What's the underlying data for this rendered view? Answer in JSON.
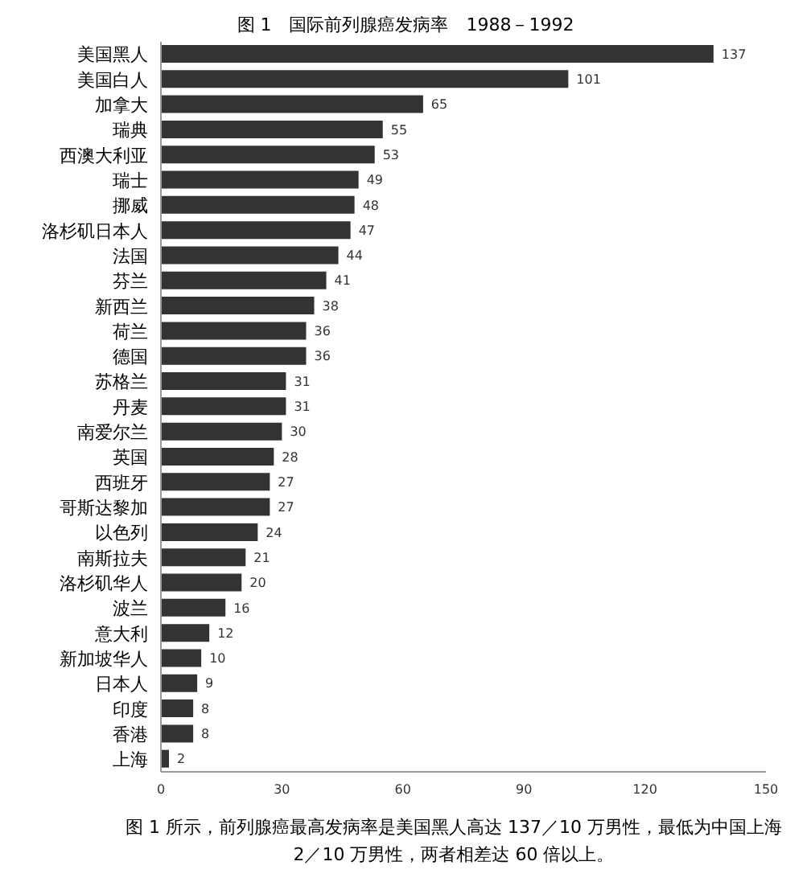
{
  "chart_data": {
    "type": "bar",
    "orientation": "horizontal",
    "title": "图 1　国际前列腺癌发病率　1988－1992",
    "categories": [
      "美国黑人",
      "美国白人",
      "加拿大",
      "瑞典",
      "西澳大利亚",
      "瑞士",
      "挪威",
      "洛杉矶日本人",
      "法国",
      "芬兰",
      "新西兰",
      "荷兰",
      "德国",
      "苏格兰",
      "丹麦",
      "南爱尔兰",
      "英国",
      "西班牙",
      "哥斯达黎加",
      "以色列",
      "南斯拉夫",
      "洛杉矶华人",
      "波兰",
      "意大利",
      "新加坡华人",
      "日本人",
      "印度",
      "香港",
      "上海"
    ],
    "values": [
      137,
      101,
      65,
      55,
      53,
      49,
      48,
      47,
      44,
      41,
      38,
      36,
      36,
      31,
      31,
      30,
      28,
      27,
      27,
      24,
      21,
      20,
      16,
      12,
      10,
      9,
      8,
      8,
      2
    ],
    "color": "#333333",
    "xlim": [
      0,
      150
    ],
    "xticks": [
      0,
      30,
      60,
      90,
      120,
      150
    ],
    "data_labels": true,
    "grid": false,
    "legend": false,
    "annotations": [
      "图 1 所示，前列腺癌最高发病率是美国黑人高达 137／10 万男性，最低为中国上海 2／10 万男性，两者相差达 60 倍以上。"
    ]
  }
}
